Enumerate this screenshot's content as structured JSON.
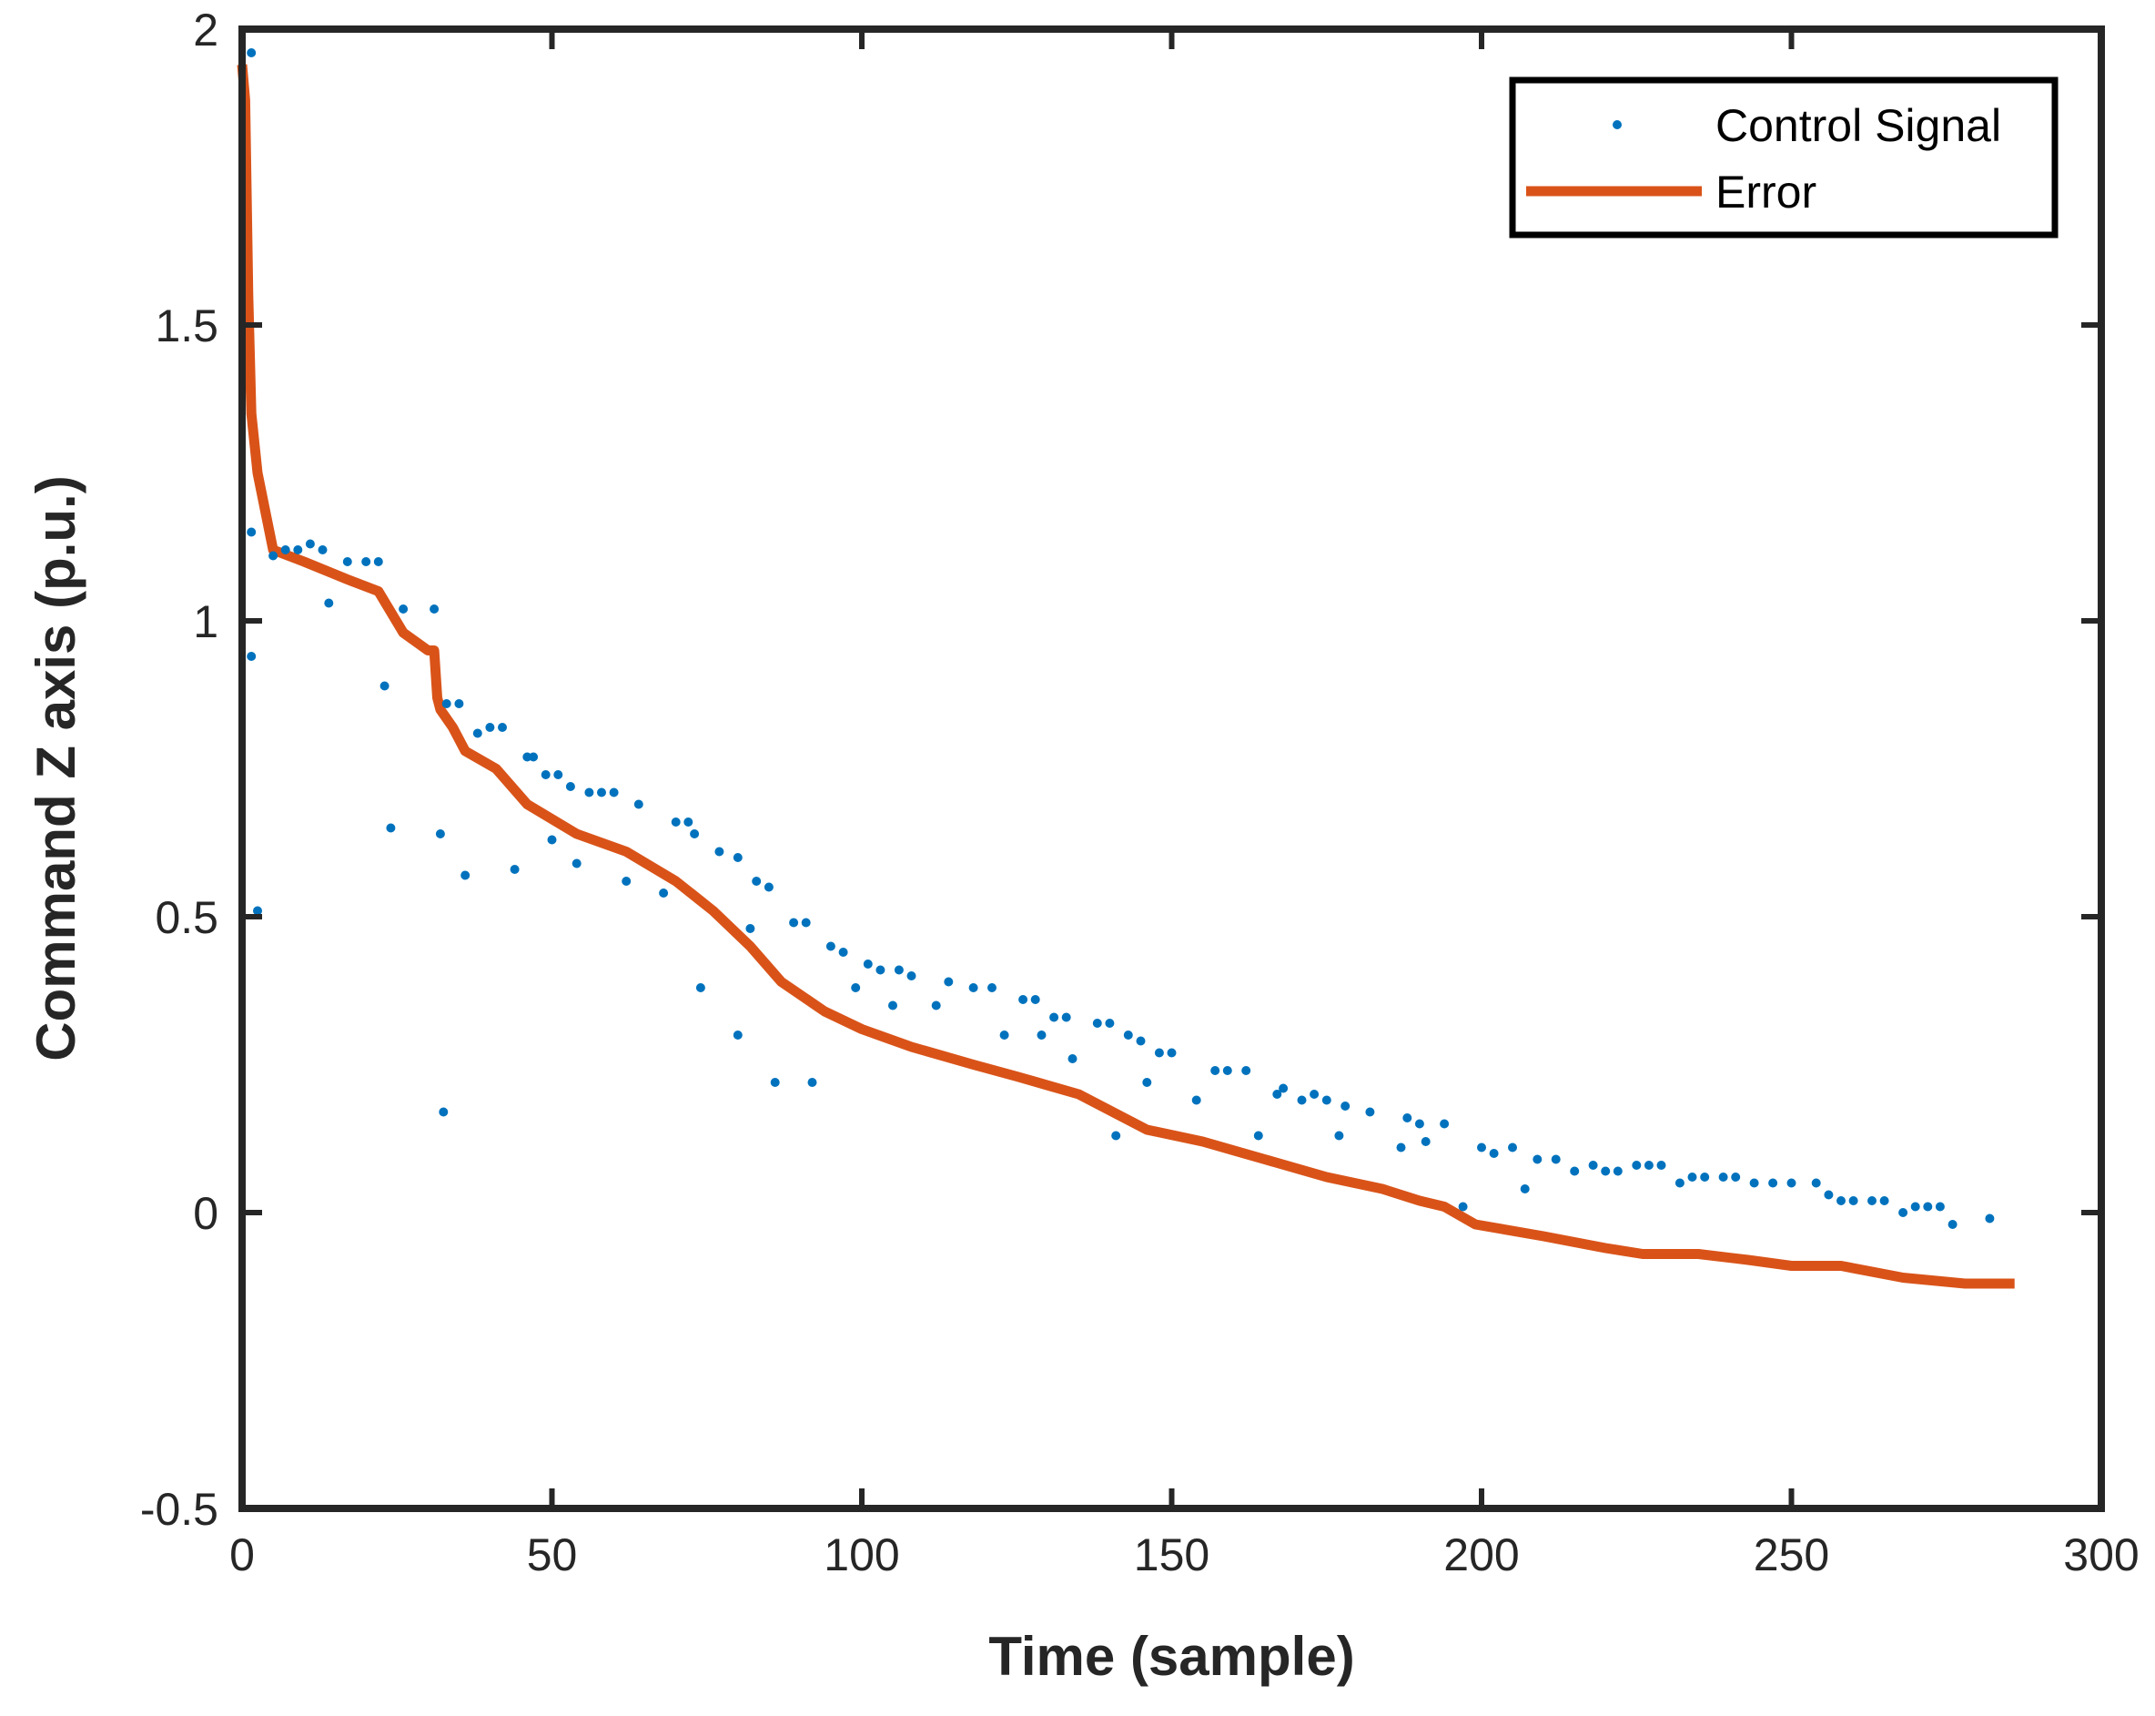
{
  "chart_data": {
    "type": "line",
    "title": "",
    "xlabel": "Time (sample)",
    "ylabel": "Command Z axis (p.u.)",
    "xlim": [
      0,
      300
    ],
    "ylim": [
      -0.5,
      2
    ],
    "xticks": [
      0,
      50,
      100,
      150,
      200,
      250,
      300
    ],
    "yticks": [
      -0.5,
      0,
      0.5,
      1,
      1.5,
      2
    ],
    "xtick_labels": [
      "0",
      "50",
      "100",
      "150",
      "200",
      "250",
      "300"
    ],
    "ytick_labels": [
      "-0.5",
      "0",
      "0.5",
      "1",
      "1.5",
      "2"
    ],
    "grid": false,
    "legend_position": "top-right",
    "series": [
      {
        "name": "Control Signal",
        "style": "markers",
        "color": "#0072BD",
        "points": [
          [
            1.5,
            1.96
          ],
          [
            1.5,
            1.15
          ],
          [
            1.5,
            0.94
          ],
          [
            2.5,
            0.51
          ],
          [
            5,
            1.11
          ],
          [
            7,
            1.12
          ],
          [
            9,
            1.12
          ],
          [
            11,
            1.13
          ],
          [
            13,
            1.12
          ],
          [
            14,
            1.03
          ],
          [
            17,
            1.1
          ],
          [
            20,
            1.1
          ],
          [
            22,
            1.1
          ],
          [
            23,
            0.89
          ],
          [
            24,
            0.65
          ],
          [
            26,
            1.02
          ],
          [
            31,
            1.02
          ],
          [
            32,
            0.64
          ],
          [
            32.5,
            0.17
          ],
          [
            33,
            0.86
          ],
          [
            35,
            0.86
          ],
          [
            36,
            0.57
          ],
          [
            38,
            0.81
          ],
          [
            40,
            0.82
          ],
          [
            42,
            0.82
          ],
          [
            44,
            0.58
          ],
          [
            46,
            0.77
          ],
          [
            47,
            0.77
          ],
          [
            49,
            0.74
          ],
          [
            50,
            0.63
          ],
          [
            51,
            0.74
          ],
          [
            53,
            0.72
          ],
          [
            54,
            0.59
          ],
          [
            56,
            0.71
          ],
          [
            58,
            0.71
          ],
          [
            60,
            0.71
          ],
          [
            62,
            0.56
          ],
          [
            64,
            0.69
          ],
          [
            68,
            0.54
          ],
          [
            70,
            0.66
          ],
          [
            72,
            0.66
          ],
          [
            73,
            0.64
          ],
          [
            74,
            0.38
          ],
          [
            77,
            0.61
          ],
          [
            80,
            0.6
          ],
          [
            80,
            0.3
          ],
          [
            82,
            0.48
          ],
          [
            83,
            0.56
          ],
          [
            85,
            0.55
          ],
          [
            86,
            0.22
          ],
          [
            89,
            0.49
          ],
          [
            91,
            0.49
          ],
          [
            92,
            0.22
          ],
          [
            95,
            0.45
          ],
          [
            97,
            0.44
          ],
          [
            99,
            0.38
          ],
          [
            101,
            0.42
          ],
          [
            103,
            0.41
          ],
          [
            105,
            0.35
          ],
          [
            106,
            0.41
          ],
          [
            108,
            0.4
          ],
          [
            112,
            0.35
          ],
          [
            114,
            0.39
          ],
          [
            118,
            0.38
          ],
          [
            121,
            0.38
          ],
          [
            123,
            0.3
          ],
          [
            126,
            0.36
          ],
          [
            128,
            0.36
          ],
          [
            129,
            0.3
          ],
          [
            131,
            0.33
          ],
          [
            133,
            0.33
          ],
          [
            134,
            0.26
          ],
          [
            138,
            0.32
          ],
          [
            140,
            0.32
          ],
          [
            141,
            0.13
          ],
          [
            143,
            0.3
          ],
          [
            145,
            0.29
          ],
          [
            146,
            0.22
          ],
          [
            148,
            0.27
          ],
          [
            150,
            0.27
          ],
          [
            154,
            0.19
          ],
          [
            157,
            0.24
          ],
          [
            159,
            0.24
          ],
          [
            162,
            0.24
          ],
          [
            164,
            0.13
          ],
          [
            167,
            0.2
          ],
          [
            168,
            0.21
          ],
          [
            171,
            0.19
          ],
          [
            173,
            0.2
          ],
          [
            175,
            0.19
          ],
          [
            177,
            0.13
          ],
          [
            178,
            0.18
          ],
          [
            182,
            0.17
          ],
          [
            187,
            0.11
          ],
          [
            188,
            0.16
          ],
          [
            190,
            0.15
          ],
          [
            191,
            0.12
          ],
          [
            194,
            0.15
          ],
          [
            197,
            0.01
          ],
          [
            200,
            0.11
          ],
          [
            202,
            0.1
          ],
          [
            205,
            0.11
          ],
          [
            207,
            0.04
          ],
          [
            209,
            0.09
          ],
          [
            212,
            0.09
          ],
          [
            215,
            0.07
          ],
          [
            218,
            0.08
          ],
          [
            220,
            0.07
          ],
          [
            222,
            0.07
          ],
          [
            225,
            0.08
          ],
          [
            227,
            0.08
          ],
          [
            229,
            0.08
          ],
          [
            232,
            0.05
          ],
          [
            234,
            0.06
          ],
          [
            236,
            0.06
          ],
          [
            239,
            0.06
          ],
          [
            241,
            0.06
          ],
          [
            244,
            0.05
          ],
          [
            247,
            0.05
          ],
          [
            250,
            0.05
          ],
          [
            254,
            0.05
          ],
          [
            256,
            0.03
          ],
          [
            258,
            0.02
          ],
          [
            260,
            0.02
          ],
          [
            263,
            0.02
          ],
          [
            265,
            0.02
          ],
          [
            268,
            0.0
          ],
          [
            270,
            0.01
          ],
          [
            272,
            0.01
          ],
          [
            274,
            0.01
          ],
          [
            276,
            -0.02
          ],
          [
            282,
            -0.01
          ]
        ]
      },
      {
        "name": "Error",
        "style": "line",
        "color": "#D95319",
        "points": [
          [
            0,
            1.94
          ],
          [
            0.5,
            1.88
          ],
          [
            1,
            1.55
          ],
          [
            1.5,
            1.35
          ],
          [
            2.5,
            1.25
          ],
          [
            5,
            1.12
          ],
          [
            10,
            1.1
          ],
          [
            17,
            1.07
          ],
          [
            22,
            1.05
          ],
          [
            26,
            0.98
          ],
          [
            30,
            0.95
          ],
          [
            31,
            0.95
          ],
          [
            31.5,
            0.87
          ],
          [
            32,
            0.85
          ],
          [
            34,
            0.82
          ],
          [
            36,
            0.78
          ],
          [
            41,
            0.75
          ],
          [
            46,
            0.69
          ],
          [
            54,
            0.64
          ],
          [
            62,
            0.61
          ],
          [
            70,
            0.56
          ],
          [
            76,
            0.51
          ],
          [
            82,
            0.45
          ],
          [
            87,
            0.39
          ],
          [
            94,
            0.34
          ],
          [
            100,
            0.31
          ],
          [
            108,
            0.28
          ],
          [
            118,
            0.25
          ],
          [
            125,
            0.23
          ],
          [
            135,
            0.2
          ],
          [
            146,
            0.14
          ],
          [
            155,
            0.12
          ],
          [
            165,
            0.09
          ],
          [
            175,
            0.06
          ],
          [
            184,
            0.04
          ],
          [
            190,
            0.02
          ],
          [
            194,
            0.01
          ],
          [
            199,
            -0.02
          ],
          [
            210,
            -0.04
          ],
          [
            220,
            -0.06
          ],
          [
            226,
            -0.07
          ],
          [
            235,
            -0.07
          ],
          [
            243,
            -0.08
          ],
          [
            250,
            -0.09
          ],
          [
            258,
            -0.09
          ],
          [
            268,
            -0.11
          ],
          [
            278,
            -0.12
          ],
          [
            286,
            -0.12
          ]
        ]
      }
    ]
  }
}
